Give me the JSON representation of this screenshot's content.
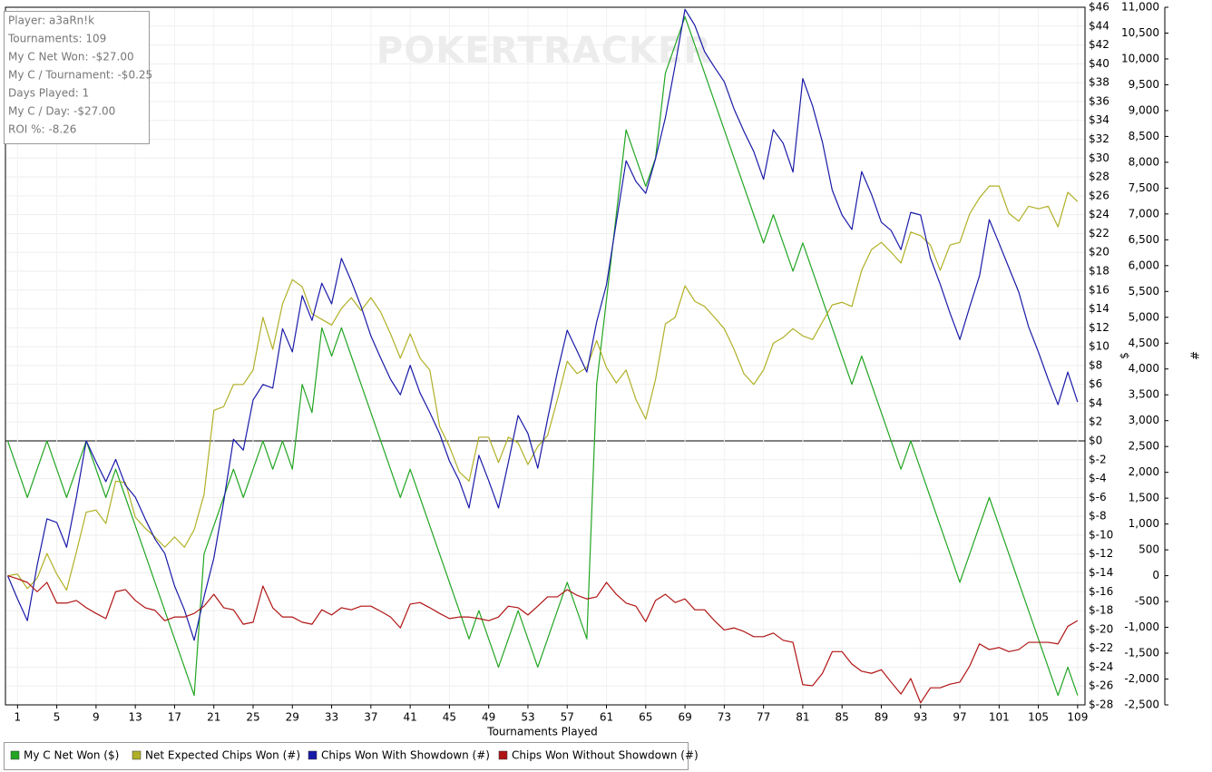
{
  "chart_data": {
    "type": "line",
    "watermark": "POKERTRACKER",
    "annotations": [
      "Player: a3aRn!k",
      "Tournaments: 109",
      "My C Net Won: -$27.00",
      "My C / Tournament: -$0.25",
      "Days Played: 1",
      "My C / Day: -$27.00",
      "ROI %: -8.26"
    ],
    "xlabel": "Tournaments Played",
    "ylabel": "$",
    "y2label": "#",
    "grid": true,
    "x": [
      0,
      1,
      2,
      3,
      4,
      5,
      6,
      7,
      8,
      9,
      10,
      11,
      12,
      13,
      14,
      15,
      16,
      17,
      18,
      19,
      20,
      21,
      22,
      23,
      24,
      25,
      26,
      27,
      28,
      29,
      30,
      31,
      32,
      33,
      34,
      35,
      36,
      37,
      38,
      39,
      40,
      41,
      42,
      43,
      44,
      45,
      46,
      47,
      48,
      49,
      50,
      51,
      52,
      53,
      54,
      55,
      56,
      57,
      58,
      59,
      60,
      61,
      62,
      63,
      64,
      65,
      66,
      67,
      68,
      69,
      70,
      71,
      72,
      73,
      74,
      75,
      76,
      77,
      78,
      79,
      80,
      81,
      82,
      83,
      84,
      85,
      86,
      87,
      88,
      89,
      90,
      91,
      92,
      93,
      94,
      95,
      96,
      97,
      98,
      99,
      100,
      101,
      102,
      103,
      104,
      105,
      106,
      107,
      108,
      109
    ],
    "xlim": [
      0,
      110
    ],
    "xticks": [
      1,
      5,
      9,
      13,
      17,
      21,
      25,
      29,
      33,
      37,
      41,
      45,
      49,
      53,
      57,
      61,
      65,
      69,
      73,
      77,
      81,
      85,
      89,
      93,
      97,
      101,
      105,
      109
    ],
    "ylim": [
      -28,
      46
    ],
    "yticks": [
      {
        "value": -28,
        "label": "$-28"
      },
      {
        "value": -26,
        "label": "$-26"
      },
      {
        "value": -24,
        "label": "$-24"
      },
      {
        "value": -22,
        "label": "$-22"
      },
      {
        "value": -20,
        "label": "$-20"
      },
      {
        "value": -18,
        "label": "$-18"
      },
      {
        "value": -16,
        "label": "$-16"
      },
      {
        "value": -14,
        "label": "$-14"
      },
      {
        "value": -12,
        "label": "$-12"
      },
      {
        "value": -10,
        "label": "$-10"
      },
      {
        "value": -8,
        "label": "$-8"
      },
      {
        "value": -6,
        "label": "$-6"
      },
      {
        "value": -4,
        "label": "$-4"
      },
      {
        "value": -2,
        "label": "$-2"
      },
      {
        "value": 0,
        "label": "$0"
      },
      {
        "value": 2,
        "label": "$2"
      },
      {
        "value": 4,
        "label": "$4"
      },
      {
        "value": 6,
        "label": "$6"
      },
      {
        "value": 8,
        "label": "$8"
      },
      {
        "value": 10,
        "label": "$10"
      },
      {
        "value": 12,
        "label": "$12"
      },
      {
        "value": 14,
        "label": "$14"
      },
      {
        "value": 16,
        "label": "$16"
      },
      {
        "value": 18,
        "label": "$18"
      },
      {
        "value": 20,
        "label": "$20"
      },
      {
        "value": 22,
        "label": "$22"
      },
      {
        "value": 24,
        "label": "$24"
      },
      {
        "value": 26,
        "label": "$26"
      },
      {
        "value": 28,
        "label": "$28"
      },
      {
        "value": 30,
        "label": "$30"
      },
      {
        "value": 32,
        "label": "$32"
      },
      {
        "value": 34,
        "label": "$34"
      },
      {
        "value": 36,
        "label": "$36"
      },
      {
        "value": 38,
        "label": "$38"
      },
      {
        "value": 40,
        "label": "$40"
      },
      {
        "value": 42,
        "label": "$42"
      },
      {
        "value": 44,
        "label": "$44"
      },
      {
        "value": 46,
        "label": "$46"
      }
    ],
    "y2lim": [
      -2500,
      11000
    ],
    "y2ticks": [
      {
        "value": -2500,
        "label": "-2,500"
      },
      {
        "value": -2000,
        "label": "-2,000"
      },
      {
        "value": -1500,
        "label": "-1,500"
      },
      {
        "value": -1000,
        "label": "-1,000"
      },
      -500,
      0,
      500,
      {
        "value": 1000,
        "label": "1,000"
      },
      {
        "value": 1500,
        "label": "1,500"
      },
      {
        "value": 2000,
        "label": "2,000"
      },
      {
        "value": 2500,
        "label": "2,500"
      },
      {
        "value": 3000,
        "label": "3,000"
      },
      {
        "value": 3500,
        "label": "3,500"
      },
      {
        "value": 4000,
        "label": "4,000"
      },
      {
        "value": 4500,
        "label": "4,500"
      },
      {
        "value": 5000,
        "label": "5,000"
      },
      {
        "value": 5500,
        "label": "5,500"
      },
      {
        "value": 6000,
        "label": "6,000"
      },
      {
        "value": 6500,
        "label": "6,500"
      },
      {
        "value": 7000,
        "label": "7,000"
      },
      {
        "value": 7500,
        "label": "7,500"
      },
      {
        "value": 8000,
        "label": "8,000"
      },
      {
        "value": 8500,
        "label": "8,500"
      },
      {
        "value": 9000,
        "label": "9,000"
      },
      {
        "value": 9500,
        "label": "9,500"
      },
      {
        "value": 10000,
        "label": "10,000"
      },
      {
        "value": 10500,
        "label": "10,500"
      },
      {
        "value": 11000,
        "label": "11,000"
      }
    ],
    "series": [
      {
        "name": "My C Net Won ($)",
        "color": "#22a522",
        "axis": "y",
        "values": [
          0,
          -3,
          -6,
          -3,
          0,
          -3,
          -6,
          -3,
          0,
          -3,
          -6,
          -3,
          -6,
          -9,
          -12,
          -15,
          -18,
          -21,
          -24,
          -27,
          -12,
          -9,
          -6,
          -3,
          -6,
          -3,
          0,
          -3,
          0,
          -3,
          6,
          3,
          12,
          9,
          12,
          9,
          6,
          3,
          0,
          -3,
          -6,
          -3,
          -6,
          -9,
          -12,
          -15,
          -18,
          -21,
          -18,
          -21,
          -24,
          -21,
          -18,
          -21,
          -24,
          -21,
          -18,
          -15,
          -18,
          -21,
          6,
          15,
          24,
          33,
          30,
          27,
          30,
          39,
          42,
          45,
          42,
          39,
          36,
          33,
          30,
          27,
          24,
          21,
          24,
          21,
          18,
          21,
          18,
          15,
          12,
          9,
          6,
          9,
          6,
          3,
          0,
          -3,
          0,
          -3,
          -6,
          -9,
          -12,
          -15,
          -12,
          -9,
          -6,
          -9,
          -12,
          -15,
          -18,
          -21,
          -24,
          -27,
          -24,
          -27
        ]
      },
      {
        "name": "Net Expected Chips Won (#)",
        "color": "#b0b028",
        "axis": "y2",
        "values": [
          0,
          30,
          -250,
          -50,
          430,
          30,
          -280,
          460,
          1230,
          1270,
          1010,
          1830,
          1800,
          1130,
          920,
          750,
          550,
          750,
          550,
          890,
          1570,
          3200,
          3270,
          3700,
          3700,
          3980,
          5000,
          4380,
          5260,
          5730,
          5590,
          5070,
          4960,
          4850,
          5170,
          5380,
          5130,
          5380,
          5100,
          4680,
          4210,
          4680,
          4210,
          3980,
          2890,
          2500,
          2010,
          1830,
          2680,
          2680,
          2190,
          2680,
          2570,
          2150,
          2500,
          2710,
          3410,
          4150,
          3910,
          4030,
          4550,
          4030,
          3730,
          3980,
          3410,
          3030,
          3800,
          4870,
          5000,
          5610,
          5310,
          5210,
          5000,
          4780,
          4380,
          3910,
          3700,
          3980,
          4500,
          4610,
          4780,
          4640,
          4570,
          4910,
          5240,
          5290,
          5210,
          5910,
          6310,
          6450,
          6260,
          6050,
          6650,
          6580,
          6400,
          5910,
          6400,
          6450,
          7000,
          7310,
          7540,
          7540,
          7010,
          6860,
          7150,
          7100,
          7150,
          6750,
          7420,
          7240
        ]
      },
      {
        "name": "Chips Won With Showdown (#)",
        "color": "#1a1aa8",
        "axis": "y2",
        "values": [
          0,
          -450,
          -870,
          200,
          1100,
          1030,
          550,
          1520,
          2610,
          2200,
          1820,
          2250,
          1750,
          1520,
          1100,
          710,
          430,
          -200,
          -660,
          -1250,
          -410,
          340,
          1430,
          2640,
          2430,
          3400,
          3700,
          3630,
          4780,
          4330,
          5420,
          4940,
          5660,
          5260,
          6140,
          5700,
          5210,
          4640,
          4210,
          3800,
          3500,
          4070,
          3540,
          3160,
          2750,
          2220,
          1840,
          1310,
          2330,
          1840,
          1310,
          2190,
          3100,
          2750,
          2080,
          3030,
          3940,
          4750,
          4350,
          3940,
          4910,
          5630,
          6840,
          8030,
          7630,
          7400,
          8070,
          8860,
          9880,
          10960,
          10650,
          10140,
          9840,
          9560,
          9030,
          8600,
          8210,
          7670,
          8630,
          8370,
          7810,
          9620,
          9090,
          8390,
          7460,
          6980,
          6700,
          7820,
          7380,
          6840,
          6680,
          6310,
          7030,
          6980,
          6150,
          5640,
          5080,
          4570,
          5200,
          5800,
          6890,
          6430,
          5960,
          5490,
          4820,
          4330,
          3800,
          3310,
          3940,
          3360
        ]
      },
      {
        "name": "Chips Won Without Showdown (#)",
        "color": "#b01414",
        "axis": "y2",
        "values": [
          0,
          -60,
          -130,
          -310,
          -130,
          -530,
          -530,
          -480,
          -620,
          -730,
          -830,
          -310,
          -270,
          -480,
          -620,
          -670,
          -870,
          -800,
          -800,
          -730,
          -590,
          -360,
          -620,
          -660,
          -940,
          -900,
          -200,
          -620,
          -800,
          -800,
          -900,
          -940,
          -660,
          -760,
          -620,
          -660,
          -590,
          -590,
          -690,
          -800,
          -1010,
          -550,
          -520,
          -620,
          -730,
          -830,
          -800,
          -800,
          -830,
          -870,
          -800,
          -590,
          -620,
          -760,
          -590,
          -410,
          -410,
          -270,
          -380,
          -450,
          -410,
          -130,
          -360,
          -530,
          -590,
          -890,
          -480,
          -360,
          -520,
          -450,
          -660,
          -660,
          -870,
          -1050,
          -1010,
          -1080,
          -1180,
          -1180,
          -1110,
          -1250,
          -1290,
          -2110,
          -2130,
          -1890,
          -1470,
          -1470,
          -1710,
          -1850,
          -1890,
          -1820,
          -2060,
          -2290,
          -1990,
          -2460,
          -2170,
          -2170,
          -2100,
          -2060,
          -1750,
          -1320,
          -1430,
          -1390,
          -1470,
          -1430,
          -1290,
          -1290,
          -1290,
          -1320,
          -980,
          -870
        ]
      }
    ]
  }
}
